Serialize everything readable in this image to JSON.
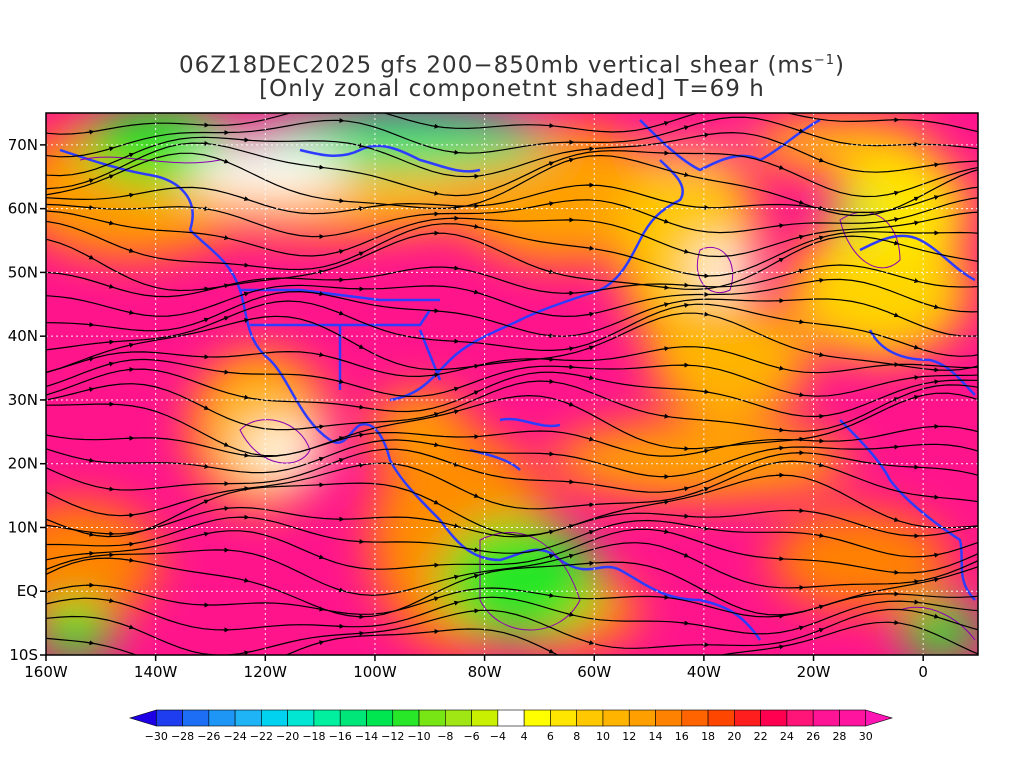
{
  "title": {
    "line1": "06Z18DEC2025 gfs 200−850mb vertical shear (ms",
    "line1_sup": "−1",
    "line1_end": ")",
    "line2": "[Only zonal componetnt shaded] T=69 h"
  },
  "map": {
    "lon_range": [
      -160,
      10
    ],
    "lat_range": [
      -10,
      75
    ],
    "lon_ticks": [
      {
        "value": -160,
        "label": "160W"
      },
      {
        "value": -140,
        "label": "140W"
      },
      {
        "value": -120,
        "label": "120W"
      },
      {
        "value": -100,
        "label": "100W"
      },
      {
        "value": -80,
        "label": "80W"
      },
      {
        "value": -60,
        "label": "60W"
      },
      {
        "value": -40,
        "label": "40W"
      },
      {
        "value": -20,
        "label": "20W"
      },
      {
        "value": 0,
        "label": "0"
      }
    ],
    "lat_ticks": [
      {
        "value": 70,
        "label": "70N"
      },
      {
        "value": 60,
        "label": "60N"
      },
      {
        "value": 50,
        "label": "50N"
      },
      {
        "value": 40,
        "label": "40N"
      },
      {
        "value": 30,
        "label": "30N"
      },
      {
        "value": 20,
        "label": "20N"
      },
      {
        "value": 10,
        "label": "10N"
      },
      {
        "value": 0,
        "label": "EQ"
      },
      {
        "value": -10,
        "label": "10S"
      }
    ],
    "coast_color": "#2e3cff",
    "contour_color": "#8b00b5"
  },
  "colorbar": {
    "labels": [
      "−30",
      "−28",
      "−26",
      "−24",
      "−22",
      "−20",
      "−18",
      "−16",
      "−14",
      "−12",
      "−10",
      "−8",
      "−6",
      "−4",
      "4",
      "6",
      "8",
      "10",
      "12",
      "14",
      "16",
      "18",
      "20",
      "22",
      "24",
      "26",
      "28",
      "30"
    ],
    "colors": [
      "#1e00e6",
      "#1e3cf0",
      "#1e6ef5",
      "#1e96f5",
      "#1eb4f5",
      "#00d2f0",
      "#00e6d2",
      "#00f0a0",
      "#00e678",
      "#00e650",
      "#28e628",
      "#78e614",
      "#a0e614",
      "#c8f000",
      "#ffffff",
      "#ffff00",
      "#ffe600",
      "#ffc800",
      "#ffb400",
      "#ffa000",
      "#ff8200",
      "#ff6400",
      "#ff4600",
      "#ff1e1e",
      "#ff0050",
      "#ff1478",
      "#ff1496",
      "#ff14a0",
      "#ff14b4"
    ]
  }
}
